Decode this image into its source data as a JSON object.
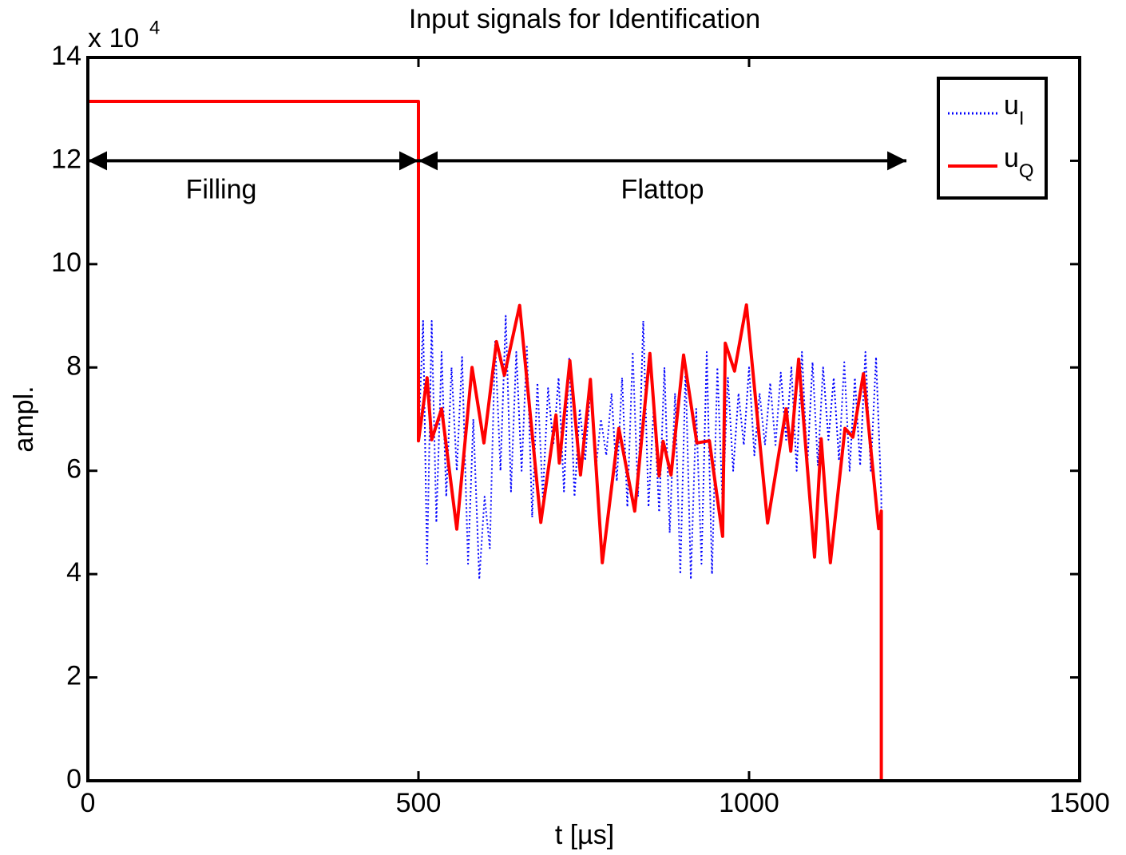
{
  "chart_data": {
    "type": "line",
    "title": "Input signals for Identification",
    "xlabel": "t [µs]",
    "ylabel": "ampl.",
    "y_multiplier": {
      "base": "x 10",
      "exponent": "4"
    },
    "xlim": [
      0,
      1500
    ],
    "ylim": [
      0,
      14
    ],
    "xticks": [
      0,
      500,
      1000,
      1500
    ],
    "yticks": [
      0,
      2,
      4,
      6,
      8,
      10,
      12,
      14
    ],
    "grid": false,
    "legend": "upper right",
    "annotations": [
      {
        "text": "Filling",
        "x": [
          0,
          500
        ],
        "y": 12
      },
      {
        "text": "Flattop",
        "x": [
          500,
          1238
        ],
        "y": 12
      }
    ],
    "series": [
      {
        "name": "u",
        "name_subscript": "I",
        "color": "#0000ff",
        "style": "dotted",
        "x": [
          0,
          500,
          500,
          507,
          513,
          520,
          527,
          535,
          542,
          550,
          558,
          566,
          575,
          583,
          592,
          600,
          608,
          616,
          624,
          632,
          640,
          648,
          656,
          664,
          672,
          680,
          688,
          696,
          704,
          712,
          720,
          728,
          736,
          744,
          752,
          760,
          768,
          776,
          784,
          792,
          800,
          808,
          816,
          824,
          832,
          840,
          848,
          856,
          864,
          872,
          880,
          888,
          896,
          904,
          912,
          920,
          928,
          936,
          944,
          952,
          960,
          968,
          976,
          984,
          992,
          1000,
          1008,
          1016,
          1024,
          1032,
          1040,
          1048,
          1056,
          1064,
          1072,
          1080,
          1088,
          1096,
          1104,
          1112,
          1120,
          1128,
          1136,
          1144,
          1152,
          1160,
          1168,
          1176,
          1184,
          1192,
          1200,
          1200,
          1500
        ],
        "values": [
          13.15,
          13.15,
          6.6,
          8.9,
          4.2,
          8.9,
          5.0,
          8.3,
          5.5,
          8.0,
          6.0,
          8.2,
          4.2,
          7.0,
          3.9,
          5.5,
          4.5,
          8.5,
          6.0,
          9.0,
          5.6,
          8.3,
          6.0,
          8.4,
          5.1,
          7.7,
          5.5,
          7.6,
          6.5,
          7.8,
          5.6,
          8.2,
          5.5,
          7.2,
          6.2,
          7.6,
          6.0,
          7.0,
          6.3,
          7.5,
          5.8,
          7.8,
          5.3,
          8.3,
          5.5,
          8.9,
          5.3,
          7.3,
          5.2,
          8.0,
          4.8,
          7.5,
          4.0,
          8.0,
          3.9,
          7.2,
          4.2,
          8.3,
          4.0,
          8.0,
          5.3,
          7.8,
          6.0,
          7.5,
          6.5,
          8.0,
          6.3,
          7.5,
          6.5,
          7.7,
          6.5,
          7.9,
          6.6,
          8.0,
          6.0,
          8.3,
          6.1,
          8.1,
          6.1,
          8.0,
          6.6,
          7.8,
          6.2,
          8.1,
          6.0,
          7.8,
          6.1,
          8.3,
          6.0,
          8.2,
          5.5,
          0,
          0
        ]
      },
      {
        "name": "u",
        "name_subscript": "Q",
        "color": "#ff0000",
        "style": "solid",
        "x": [
          0,
          500,
          500,
          513,
          520,
          535,
          558,
          581,
          599,
          618,
          630,
          653,
          685,
          708,
          713,
          729,
          745,
          760,
          778,
          803,
          827,
          850,
          864,
          870,
          882,
          901,
          921,
          940,
          960,
          964,
          978,
          996,
          1028,
          1056,
          1063,
          1075,
          1099,
          1109,
          1123,
          1145,
          1157,
          1173,
          1196,
          1200,
          1200,
          1500
        ],
        "values": [
          13.15,
          13.15,
          6.58,
          7.8,
          6.6,
          7.2,
          4.87,
          8.0,
          6.54,
          8.5,
          7.85,
          9.2,
          5.0,
          7.08,
          6.15,
          8.13,
          5.92,
          7.77,
          4.22,
          6.82,
          5.22,
          8.27,
          5.9,
          6.57,
          5.92,
          8.24,
          6.54,
          6.58,
          4.73,
          8.47,
          7.93,
          9.21,
          4.99,
          7.2,
          6.38,
          8.16,
          4.33,
          6.62,
          4.22,
          6.82,
          6.65,
          7.88,
          4.88,
          5.22,
          0,
          0
        ]
      }
    ]
  }
}
